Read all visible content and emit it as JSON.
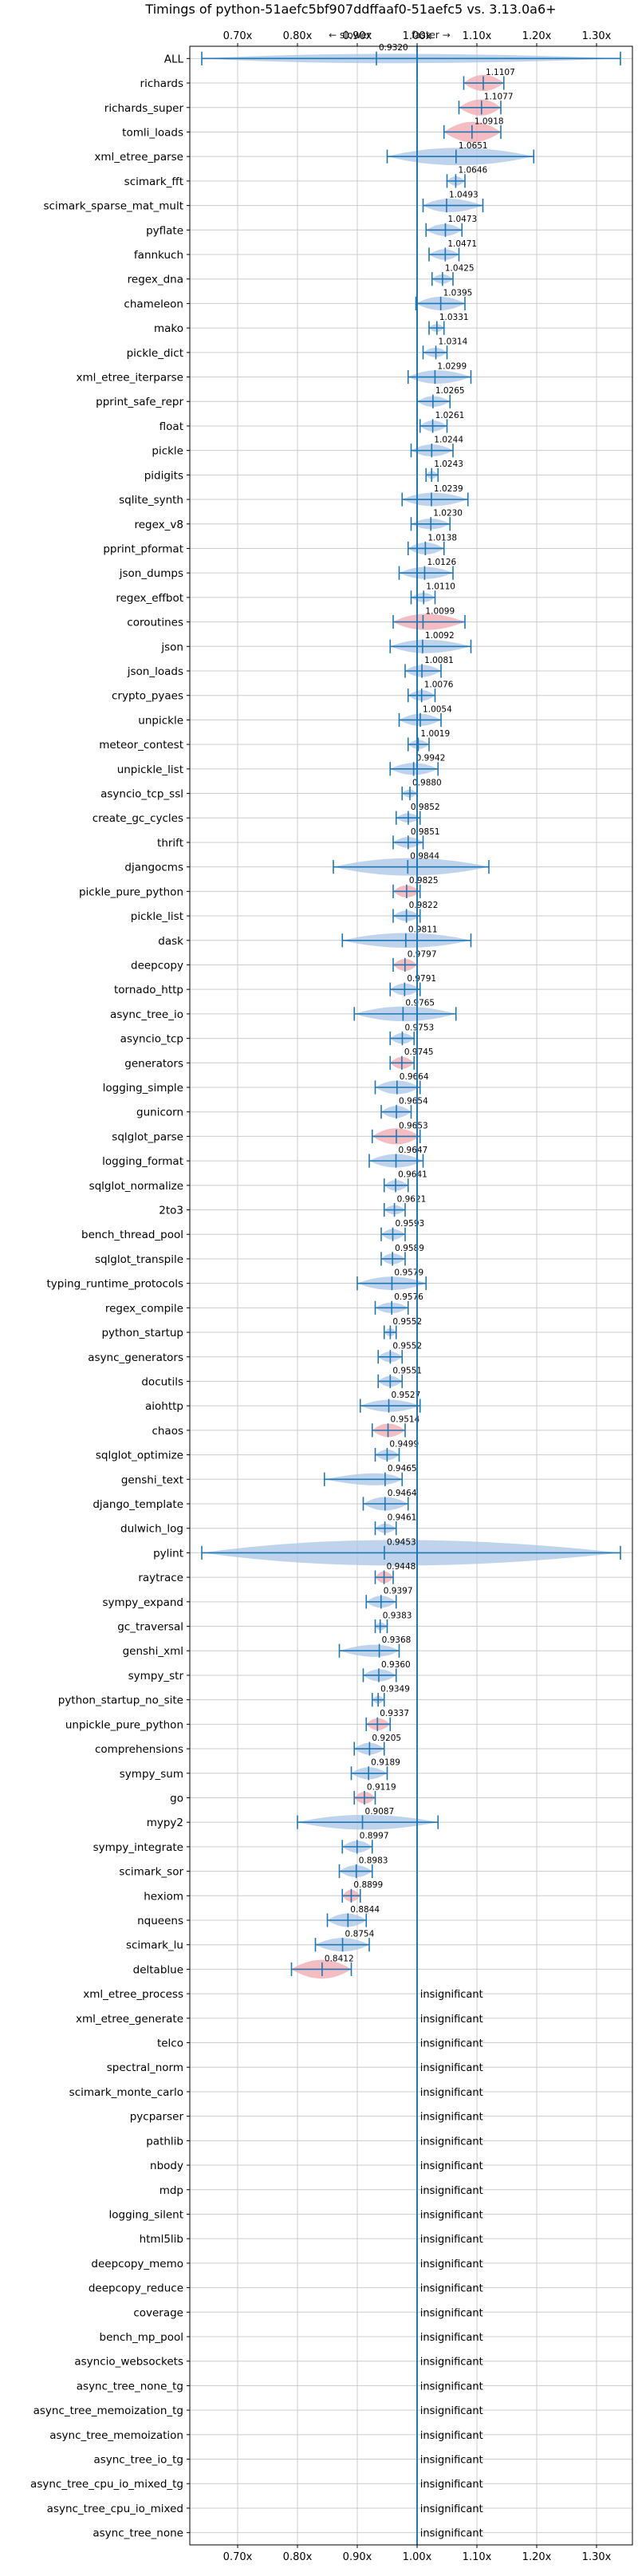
{
  "chart_data": {
    "type": "violin",
    "title": "Timings of python-51aefc5bf907ddffaaf0-51aefc5 vs. 3.13.0a6+",
    "direction_hint": {
      "slower": "← slower",
      "faster": "faster →"
    },
    "xlim": [
      0.62,
      1.36
    ],
    "x_ticks": [
      0.7,
      0.8,
      0.9,
      1.0,
      1.1,
      1.2,
      1.3
    ],
    "x_tick_labels": [
      "0.70x",
      "0.80x",
      "0.90x",
      "1.00x",
      "1.10x",
      "1.20x",
      "1.30x"
    ],
    "reference_line": 1.0,
    "grid": true,
    "colors": {
      "neutral": "#a9c6e6",
      "significant": "#f1a7ad",
      "error": "#1f77b4",
      "ref": "#1f77b4",
      "grid": "#cccccc"
    },
    "insignificant_label": "insignificant",
    "benchmarks": [
      {
        "name": "ALL",
        "value": 0.932,
        "label": "0.9320",
        "lo": 0.64,
        "hi": 1.34,
        "width": 0.35,
        "sig": false
      },
      {
        "name": "richards",
        "value": 1.1107,
        "label": "1.1107",
        "lo": 1.078,
        "hi": 1.145,
        "width": 0.6,
        "sig": true
      },
      {
        "name": "richards_super",
        "value": 1.1077,
        "label": "1.1077",
        "lo": 1.07,
        "hi": 1.14,
        "width": 0.6,
        "sig": true
      },
      {
        "name": "tomli_loads",
        "value": 1.0918,
        "label": "1.0918",
        "lo": 1.045,
        "hi": 1.14,
        "width": 0.75,
        "sig": true
      },
      {
        "name": "xml_etree_parse",
        "value": 1.0651,
        "label": "1.0651",
        "lo": 0.95,
        "hi": 1.195,
        "width": 0.65,
        "sig": false
      },
      {
        "name": "scimark_fft",
        "value": 1.0646,
        "label": "1.0646",
        "lo": 1.05,
        "hi": 1.08,
        "width": 0.35,
        "sig": false
      },
      {
        "name": "scimark_sparse_mat_mult",
        "value": 1.0493,
        "label": "1.0493",
        "lo": 1.01,
        "hi": 1.11,
        "width": 0.5,
        "sig": false
      },
      {
        "name": "pyflate",
        "value": 1.0473,
        "label": "1.0473",
        "lo": 1.015,
        "hi": 1.075,
        "width": 0.45,
        "sig": false
      },
      {
        "name": "fannkuch",
        "value": 1.0471,
        "label": "1.0471",
        "lo": 1.02,
        "hi": 1.07,
        "width": 0.4,
        "sig": false
      },
      {
        "name": "regex_dna",
        "value": 1.0425,
        "label": "1.0425",
        "lo": 1.025,
        "hi": 1.06,
        "width": 0.35,
        "sig": false
      },
      {
        "name": "chameleon",
        "value": 1.0395,
        "label": "1.0395",
        "lo": 0.998,
        "hi": 1.08,
        "width": 0.5,
        "sig": false
      },
      {
        "name": "mako",
        "value": 1.0331,
        "label": "1.0331",
        "lo": 1.02,
        "hi": 1.045,
        "width": 0.3,
        "sig": false
      },
      {
        "name": "pickle_dict",
        "value": 1.0314,
        "label": "1.0314",
        "lo": 1.01,
        "hi": 1.05,
        "width": 0.35,
        "sig": false
      },
      {
        "name": "xml_etree_iterparse",
        "value": 1.0299,
        "label": "1.0299",
        "lo": 0.985,
        "hi": 1.09,
        "width": 0.5,
        "sig": false
      },
      {
        "name": "pprint_safe_repr",
        "value": 1.0265,
        "label": "1.0265",
        "lo": 1.0,
        "hi": 1.055,
        "width": 0.4,
        "sig": false
      },
      {
        "name": "float",
        "value": 1.0261,
        "label": "1.0261",
        "lo": 1.005,
        "hi": 1.05,
        "width": 0.4,
        "sig": false
      },
      {
        "name": "pickle",
        "value": 1.0244,
        "label": "1.0244",
        "lo": 0.99,
        "hi": 1.06,
        "width": 0.45,
        "sig": false
      },
      {
        "name": "pidigits",
        "value": 1.0243,
        "label": "1.0243",
        "lo": 1.015,
        "hi": 1.035,
        "width": 0.3,
        "sig": false
      },
      {
        "name": "sqlite_synth",
        "value": 1.0239,
        "label": "1.0239",
        "lo": 0.975,
        "hi": 1.085,
        "width": 0.5,
        "sig": false
      },
      {
        "name": "regex_v8",
        "value": 1.023,
        "label": "1.0230",
        "lo": 0.99,
        "hi": 1.055,
        "width": 0.4,
        "sig": false
      },
      {
        "name": "pprint_pformat",
        "value": 1.0138,
        "label": "1.0138",
        "lo": 0.985,
        "hi": 1.045,
        "width": 0.45,
        "sig": false
      },
      {
        "name": "json_dumps",
        "value": 1.0126,
        "label": "1.0126",
        "lo": 0.97,
        "hi": 1.06,
        "width": 0.45,
        "sig": false
      },
      {
        "name": "regex_effbot",
        "value": 1.011,
        "label": "1.0110",
        "lo": 0.99,
        "hi": 1.03,
        "width": 0.35,
        "sig": false
      },
      {
        "name": "coroutines",
        "value": 1.0099,
        "label": "1.0099",
        "lo": 0.96,
        "hi": 1.08,
        "width": 0.6,
        "sig": true
      },
      {
        "name": "json",
        "value": 1.0092,
        "label": "1.0092",
        "lo": 0.955,
        "hi": 1.09,
        "width": 0.5,
        "sig": false
      },
      {
        "name": "json_loads",
        "value": 1.0081,
        "label": "1.0081",
        "lo": 0.98,
        "hi": 1.04,
        "width": 0.45,
        "sig": false
      },
      {
        "name": "crypto_pyaes",
        "value": 1.0076,
        "label": "1.0076",
        "lo": 0.985,
        "hi": 1.03,
        "width": 0.4,
        "sig": false
      },
      {
        "name": "unpickle",
        "value": 1.0054,
        "label": "1.0054",
        "lo": 0.97,
        "hi": 1.04,
        "width": 0.45,
        "sig": false
      },
      {
        "name": "meteor_contest",
        "value": 1.0019,
        "label": "1.0019",
        "lo": 0.985,
        "hi": 1.02,
        "width": 0.35,
        "sig": false
      },
      {
        "name": "unpickle_list",
        "value": 0.9942,
        "label": "0.9942",
        "lo": 0.955,
        "hi": 1.035,
        "width": 0.45,
        "sig": false
      },
      {
        "name": "asyncio_tcp_ssl",
        "value": 0.988,
        "label": "0.9880",
        "lo": 0.975,
        "hi": 1.0,
        "width": 0.3,
        "sig": false
      },
      {
        "name": "create_gc_cycles",
        "value": 0.9852,
        "label": "0.9852",
        "lo": 0.965,
        "hi": 1.005,
        "width": 0.35,
        "sig": false
      },
      {
        "name": "thrift",
        "value": 0.9851,
        "label": "0.9851",
        "lo": 0.96,
        "hi": 1.01,
        "width": 0.4,
        "sig": false
      },
      {
        "name": "djangocms",
        "value": 0.9844,
        "label": "0.9844",
        "lo": 0.86,
        "hi": 1.12,
        "width": 0.65,
        "sig": false
      },
      {
        "name": "pickle_pure_python",
        "value": 0.9825,
        "label": "0.9825",
        "lo": 0.96,
        "hi": 1.005,
        "width": 0.45,
        "sig": true
      },
      {
        "name": "pickle_list",
        "value": 0.9822,
        "label": "0.9822",
        "lo": 0.96,
        "hi": 1.005,
        "width": 0.4,
        "sig": false
      },
      {
        "name": "dask",
        "value": 0.9811,
        "label": "0.9811",
        "lo": 0.875,
        "hi": 1.09,
        "width": 0.55,
        "sig": false
      },
      {
        "name": "deepcopy",
        "value": 0.9797,
        "label": "0.9797",
        "lo": 0.96,
        "hi": 1.0,
        "width": 0.45,
        "sig": true
      },
      {
        "name": "tornado_http",
        "value": 0.9791,
        "label": "0.9791",
        "lo": 0.955,
        "hi": 1.005,
        "width": 0.45,
        "sig": false
      },
      {
        "name": "async_tree_io",
        "value": 0.9765,
        "label": "0.9765",
        "lo": 0.895,
        "hi": 1.065,
        "width": 0.55,
        "sig": false
      },
      {
        "name": "asyncio_tcp",
        "value": 0.9753,
        "label": "0.9753",
        "lo": 0.955,
        "hi": 0.995,
        "width": 0.4,
        "sig": false
      },
      {
        "name": "generators",
        "value": 0.9745,
        "label": "0.9745",
        "lo": 0.955,
        "hi": 0.995,
        "width": 0.45,
        "sig": true
      },
      {
        "name": "logging_simple",
        "value": 0.9664,
        "label": "0.9664",
        "lo": 0.93,
        "hi": 1.005,
        "width": 0.5,
        "sig": false
      },
      {
        "name": "gunicorn",
        "value": 0.9654,
        "label": "0.9654",
        "lo": 0.94,
        "hi": 0.99,
        "width": 0.45,
        "sig": false
      },
      {
        "name": "sqlglot_parse",
        "value": 0.9653,
        "label": "0.9653",
        "lo": 0.925,
        "hi": 1.005,
        "width": 0.6,
        "sig": true
      },
      {
        "name": "logging_format",
        "value": 0.9647,
        "label": "0.9647",
        "lo": 0.92,
        "hi": 1.01,
        "width": 0.5,
        "sig": false
      },
      {
        "name": "sqlglot_normalize",
        "value": 0.9641,
        "label": "0.9641",
        "lo": 0.945,
        "hi": 0.985,
        "width": 0.4,
        "sig": false
      },
      {
        "name": "2to3",
        "value": 0.9621,
        "label": "0.9621",
        "lo": 0.945,
        "hi": 0.98,
        "width": 0.35,
        "sig": false
      },
      {
        "name": "bench_thread_pool",
        "value": 0.9593,
        "label": "0.9593",
        "lo": 0.94,
        "hi": 0.98,
        "width": 0.4,
        "sig": false
      },
      {
        "name": "sqlglot_transpile",
        "value": 0.9589,
        "label": "0.9589",
        "lo": 0.94,
        "hi": 0.98,
        "width": 0.4,
        "sig": false
      },
      {
        "name": "typing_runtime_protocols",
        "value": 0.9579,
        "label": "0.9579",
        "lo": 0.9,
        "hi": 1.015,
        "width": 0.5,
        "sig": false
      },
      {
        "name": "regex_compile",
        "value": 0.9576,
        "label": "0.9576",
        "lo": 0.93,
        "hi": 0.985,
        "width": 0.4,
        "sig": false
      },
      {
        "name": "python_startup",
        "value": 0.9552,
        "label": "0.9552",
        "lo": 0.945,
        "hi": 0.965,
        "width": 0.3,
        "sig": false
      },
      {
        "name": "async_generators",
        "value": 0.9552,
        "label": "0.9552",
        "lo": 0.935,
        "hi": 0.975,
        "width": 0.4,
        "sig": false
      },
      {
        "name": "docutils",
        "value": 0.9551,
        "label": "0.9551",
        "lo": 0.935,
        "hi": 0.975,
        "width": 0.4,
        "sig": false
      },
      {
        "name": "aiohttp",
        "value": 0.9527,
        "label": "0.9527",
        "lo": 0.905,
        "hi": 1.005,
        "width": 0.45,
        "sig": false
      },
      {
        "name": "chaos",
        "value": 0.9514,
        "label": "0.9514",
        "lo": 0.925,
        "hi": 0.98,
        "width": 0.5,
        "sig": true
      },
      {
        "name": "sqlglot_optimize",
        "value": 0.9499,
        "label": "0.9499",
        "lo": 0.93,
        "hi": 0.97,
        "width": 0.4,
        "sig": false
      },
      {
        "name": "genshi_text",
        "value": 0.9465,
        "label": "0.9465",
        "lo": 0.845,
        "hi": 0.975,
        "width": 0.45,
        "sig": false
      },
      {
        "name": "django_template",
        "value": 0.9464,
        "label": "0.9464",
        "lo": 0.91,
        "hi": 0.985,
        "width": 0.5,
        "sig": false
      },
      {
        "name": "dulwich_log",
        "value": 0.9461,
        "label": "0.9461",
        "lo": 0.93,
        "hi": 0.965,
        "width": 0.35,
        "sig": false
      },
      {
        "name": "pylint",
        "value": 0.9453,
        "label": "0.9453",
        "lo": 0.64,
        "hi": 1.34,
        "width": 0.95,
        "sig": false
      },
      {
        "name": "raytrace",
        "value": 0.9448,
        "label": "0.9448",
        "lo": 0.93,
        "hi": 0.96,
        "width": 0.45,
        "sig": true
      },
      {
        "name": "sympy_expand",
        "value": 0.9397,
        "label": "0.9397",
        "lo": 0.915,
        "hi": 0.965,
        "width": 0.45,
        "sig": false
      },
      {
        "name": "gc_traversal",
        "value": 0.9383,
        "label": "0.9383",
        "lo": 0.93,
        "hi": 0.95,
        "width": 0.3,
        "sig": false
      },
      {
        "name": "genshi_xml",
        "value": 0.9368,
        "label": "0.9368",
        "lo": 0.87,
        "hi": 0.97,
        "width": 0.45,
        "sig": false
      },
      {
        "name": "sympy_str",
        "value": 0.936,
        "label": "0.9360",
        "lo": 0.91,
        "hi": 0.965,
        "width": 0.45,
        "sig": false
      },
      {
        "name": "python_startup_no_site",
        "value": 0.9349,
        "label": "0.9349",
        "lo": 0.925,
        "hi": 0.945,
        "width": 0.3,
        "sig": false
      },
      {
        "name": "unpickle_pure_python",
        "value": 0.9337,
        "label": "0.9337",
        "lo": 0.915,
        "hi": 0.955,
        "width": 0.45,
        "sig": true
      },
      {
        "name": "comprehensions",
        "value": 0.9205,
        "label": "0.9205",
        "lo": 0.895,
        "hi": 0.945,
        "width": 0.45,
        "sig": false
      },
      {
        "name": "sympy_sum",
        "value": 0.9189,
        "label": "0.9189",
        "lo": 0.89,
        "hi": 0.95,
        "width": 0.45,
        "sig": false
      },
      {
        "name": "go",
        "value": 0.9119,
        "label": "0.9119",
        "lo": 0.895,
        "hi": 0.93,
        "width": 0.45,
        "sig": true
      },
      {
        "name": "mypy2",
        "value": 0.9087,
        "label": "0.9087",
        "lo": 0.8,
        "hi": 1.035,
        "width": 0.55,
        "sig": false
      },
      {
        "name": "sympy_integrate",
        "value": 0.8997,
        "label": "0.8997",
        "lo": 0.875,
        "hi": 0.925,
        "width": 0.45,
        "sig": false
      },
      {
        "name": "scimark_sor",
        "value": 0.8983,
        "label": "0.8983",
        "lo": 0.87,
        "hi": 0.925,
        "width": 0.45,
        "sig": false
      },
      {
        "name": "hexiom",
        "value": 0.8899,
        "label": "0.8899",
        "lo": 0.875,
        "hi": 0.905,
        "width": 0.45,
        "sig": true
      },
      {
        "name": "nqueens",
        "value": 0.8844,
        "label": "0.8844",
        "lo": 0.85,
        "hi": 0.915,
        "width": 0.5,
        "sig": false
      },
      {
        "name": "scimark_lu",
        "value": 0.8754,
        "label": "0.8754",
        "lo": 0.83,
        "hi": 0.92,
        "width": 0.5,
        "sig": false
      },
      {
        "name": "deltablue",
        "value": 0.8412,
        "label": "0.8412",
        "lo": 0.79,
        "hi": 0.89,
        "width": 0.7,
        "sig": true
      },
      {
        "name": "xml_etree_process",
        "insignificant": true
      },
      {
        "name": "xml_etree_generate",
        "insignificant": true
      },
      {
        "name": "telco",
        "insignificant": true
      },
      {
        "name": "spectral_norm",
        "insignificant": true
      },
      {
        "name": "scimark_monte_carlo",
        "insignificant": true
      },
      {
        "name": "pycparser",
        "insignificant": true
      },
      {
        "name": "pathlib",
        "insignificant": true
      },
      {
        "name": "nbody",
        "insignificant": true
      },
      {
        "name": "mdp",
        "insignificant": true
      },
      {
        "name": "logging_silent",
        "insignificant": true
      },
      {
        "name": "html5lib",
        "insignificant": true
      },
      {
        "name": "deepcopy_memo",
        "insignificant": true
      },
      {
        "name": "deepcopy_reduce",
        "insignificant": true
      },
      {
        "name": "coverage",
        "insignificant": true
      },
      {
        "name": "bench_mp_pool",
        "insignificant": true
      },
      {
        "name": "asyncio_websockets",
        "insignificant": true
      },
      {
        "name": "async_tree_none_tg",
        "insignificant": true
      },
      {
        "name": "async_tree_memoization_tg",
        "insignificant": true
      },
      {
        "name": "async_tree_memoization",
        "insignificant": true
      },
      {
        "name": "async_tree_io_tg",
        "insignificant": true
      },
      {
        "name": "async_tree_cpu_io_mixed_tg",
        "insignificant": true
      },
      {
        "name": "async_tree_cpu_io_mixed",
        "insignificant": true
      },
      {
        "name": "async_tree_none",
        "insignificant": true
      }
    ]
  }
}
